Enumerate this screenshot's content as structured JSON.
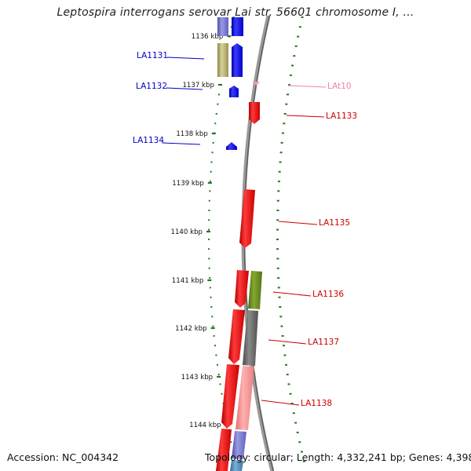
{
  "title": "Leptospira interrogans serovar Lai str. 56601 chromosome I, ...",
  "footer": {
    "accession": "Accession: NC_004342",
    "summary": "Topology: circular; Length: 4,332,241 bp; Genes: 4,398"
  },
  "colors": {
    "backbone": "#8a8a8a",
    "tick": "#1f7a1f",
    "forward_gene": "#0000ee",
    "forward_label": "#0000cc",
    "reverse_gene": "#ee0000",
    "reverse_label": "#cc0000",
    "trna": "#f080b0"
  },
  "ruler": [
    {
      "kbp": 1136,
      "label": "1136 kbp"
    },
    {
      "kbp": 1137,
      "label": "1137 kbp"
    },
    {
      "kbp": 1138,
      "label": "1138 kbp"
    },
    {
      "kbp": 1139,
      "label": "1139 kbp"
    },
    {
      "kbp": 1140,
      "label": "1140 kbp"
    },
    {
      "kbp": 1141,
      "label": "1141 kbp"
    },
    {
      "kbp": 1142,
      "label": "1142 kbp"
    },
    {
      "kbp": 1143,
      "label": "1143 kbp"
    },
    {
      "kbp": 1144,
      "label": "1144 kbp"
    }
  ],
  "genes": [
    {
      "name": "LA1131",
      "strand": "forward",
      "color": "#0000ee"
    },
    {
      "name": "LA1132",
      "strand": "forward",
      "color": "#0000ee"
    },
    {
      "name": "LAt10",
      "strand": "reverse",
      "color": "#f080b0"
    },
    {
      "name": "LA1133",
      "strand": "reverse",
      "color": "#ee0000"
    },
    {
      "name": "LA1134",
      "strand": "forward",
      "color": "#0000ee"
    },
    {
      "name": "LA1135",
      "strand": "reverse",
      "color": "#ee0000"
    },
    {
      "name": "LA1136",
      "strand": "reverse",
      "color": "#ee0000"
    },
    {
      "name": "LA1137",
      "strand": "reverse",
      "color": "#ee0000"
    },
    {
      "name": "LA1138",
      "strand": "reverse",
      "color": "#ee0000"
    }
  ]
}
